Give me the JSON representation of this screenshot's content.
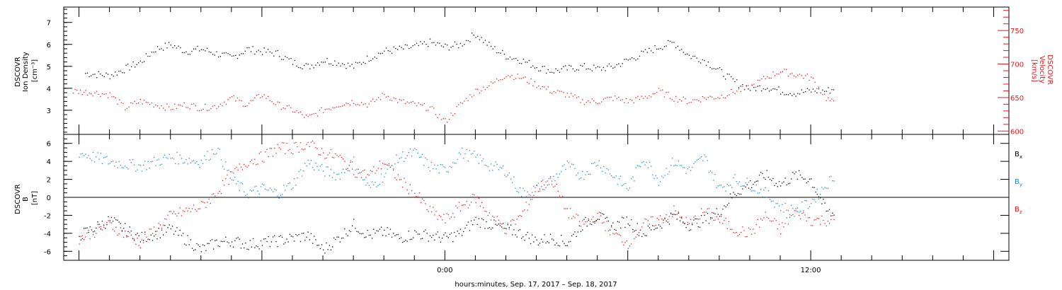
{
  "x_axis_title": "hours:minutes, Sep. 17, 2017 – Sep. 18, 2017",
  "colors": {
    "black": "#000000",
    "red": "#e8191c",
    "blue": "#1e86d8"
  },
  "chart_data": [
    {
      "type": "scatter",
      "panel": "top",
      "left_axis_label": [
        "DSCOVR",
        "Ion Density",
        "[cm⁻³]"
      ],
      "right_axis_label": [
        "DSCOVR",
        "Velocity",
        "[km/s]"
      ],
      "x_ticks": [
        "0:00",
        "12:00"
      ],
      "x_range_hours": [
        -12.5,
        18.5
      ],
      "y_left_ticks": [
        "3",
        "4",
        "5",
        "6",
        "7"
      ],
      "y_left_range": [
        1.9,
        7.7
      ],
      "y_right_ticks": [
        "600",
        "650",
        "700",
        "750"
      ],
      "y_right_range": [
        595,
        785
      ],
      "series": [
        {
          "name": "Ion Density",
          "axis": "left",
          "color": "#000000",
          "x": [
            -11.8,
            -11,
            -10,
            -9.5,
            -9,
            -8.5,
            -8,
            -7.5,
            -7,
            -6.5,
            -6,
            -5.5,
            -5,
            -4.5,
            -4,
            -3.5,
            -3,
            -2.5,
            -2,
            -1.5,
            -1,
            -0.5,
            0,
            0.5,
            1,
            1.5,
            2,
            2.5,
            3,
            3.5,
            4,
            4.5,
            5,
            5.5,
            6,
            6.5,
            7,
            7.5,
            8,
            8.5,
            9,
            9.5,
            10,
            10.5,
            11,
            11.5,
            12,
            12.5,
            12.8
          ],
          "y": [
            4.7,
            4.6,
            5.2,
            5.8,
            6.0,
            5.7,
            5.8,
            5.6,
            5.4,
            5.8,
            5.7,
            5.6,
            5.2,
            5.0,
            5.3,
            5.2,
            5.0,
            5.4,
            5.7,
            5.8,
            5.9,
            6.1,
            5.9,
            6.0,
            6.5,
            5.9,
            5.5,
            5.3,
            5.0,
            4.8,
            4.9,
            5.0,
            4.9,
            5.0,
            5.3,
            5.6,
            5.9,
            6.1,
            5.5,
            5.3,
            4.8,
            4.3,
            4.0,
            4.1,
            3.9,
            3.8,
            3.9,
            3.9,
            4.0
          ]
        },
        {
          "name": "Velocity",
          "axis": "right",
          "color": "#e8191c",
          "x": [
            -12.2,
            -11.5,
            -11,
            -10.5,
            -10,
            -9.5,
            -9,
            -8.5,
            -8,
            -7.5,
            -7,
            -6.5,
            -6,
            -5.5,
            -5,
            -4.5,
            -4,
            -3.5,
            -3,
            -2.5,
            -2,
            -1.5,
            -1,
            -0.5,
            0,
            0.5,
            1,
            1.5,
            2,
            2.5,
            3,
            3.5,
            4,
            4.5,
            5,
            5.5,
            6,
            6.5,
            7,
            7.5,
            8,
            8.5,
            9,
            9.5,
            10,
            10.5,
            11,
            11.5,
            12,
            12.5,
            12.8
          ],
          "y": [
            660,
            658,
            655,
            635,
            645,
            640,
            635,
            640,
            635,
            638,
            650,
            640,
            655,
            640,
            632,
            620,
            632,
            640,
            645,
            640,
            655,
            645,
            640,
            635,
            615,
            640,
            660,
            670,
            685,
            680,
            670,
            660,
            655,
            645,
            645,
            650,
            645,
            650,
            660,
            650,
            645,
            650,
            652,
            660,
            665,
            680,
            690,
            685,
            680,
            650,
            640
          ]
        }
      ]
    },
    {
      "type": "scatter",
      "panel": "bottom",
      "left_axis_label": [
        "DSCOVR",
        "B",
        "[nT]"
      ],
      "x_ticks": [
        "0:00",
        "12:00"
      ],
      "x_range_hours": [
        -12.5,
        18.5
      ],
      "y_left_ticks": [
        "-6",
        "-4",
        "-2",
        "0",
        "2",
        "4",
        "6"
      ],
      "y_left_range": [
        -7,
        7
      ],
      "zero_line": true,
      "legend_placement": "right",
      "series": [
        {
          "name": "Bx",
          "legend_main": "B",
          "legend_sub": "x",
          "color": "#000000",
          "x": [
            -12,
            -11,
            -10,
            -9,
            -8,
            -7.5,
            -7,
            -6.5,
            -6,
            -5.5,
            -5,
            -4.5,
            -4,
            -3.5,
            -3,
            -2.5,
            -2,
            -1.5,
            -1,
            -0.5,
            0,
            0.5,
            1,
            1.5,
            2,
            2.5,
            3,
            3.5,
            4,
            4.5,
            5,
            5.5,
            6,
            6.5,
            7,
            7.5,
            8,
            8.5,
            9,
            9.5,
            10,
            10.5,
            11,
            11.5,
            12,
            12.5,
            12.8
          ],
          "y": [
            -4.2,
            -2.5,
            -4.5,
            -3.5,
            -5.8,
            -5.0,
            -4.8,
            -5.2,
            -5.0,
            -4.8,
            -4.5,
            -4.2,
            -5.8,
            -4.5,
            -3.0,
            -4.2,
            -3.8,
            -4.5,
            -4.0,
            -4.2,
            -4.5,
            -4.0,
            -2.5,
            -3.0,
            -3.5,
            -4.0,
            -4.8,
            -4.5,
            -5.0,
            -3.0,
            -2.0,
            -3.2,
            -2.5,
            -4.0,
            -3.0,
            -2.0,
            -3.0,
            -2.5,
            -1.5,
            0.5,
            1.5,
            2.5,
            1.5,
            2.5,
            2.0,
            -1.5,
            -2.0
          ]
        },
        {
          "name": "By",
          "legend_main": "B",
          "legend_sub": "y",
          "color": "#1e86d8",
          "x": [
            -12,
            -11,
            -10,
            -9,
            -8,
            -7.5,
            -7,
            -6.5,
            -6,
            -5.5,
            -5,
            -4.5,
            -4,
            -3.5,
            -3,
            -2.5,
            -2,
            -1.5,
            -1,
            -0.5,
            0,
            0.5,
            1,
            1.5,
            2,
            2.5,
            3,
            3.5,
            4,
            4.5,
            5,
            5.5,
            6,
            6.5,
            7,
            7.5,
            8,
            8.5,
            9,
            9.5,
            10,
            10.5,
            11,
            11.5,
            12,
            12.5,
            12.8
          ],
          "y": [
            5.0,
            4.0,
            3.5,
            4.5,
            4.0,
            5.5,
            2.0,
            0.5,
            1.0,
            0.5,
            1.5,
            4.0,
            3.0,
            2.5,
            4.0,
            1.0,
            2.5,
            4.5,
            5.0,
            3.5,
            3.0,
            5.0,
            4.5,
            3.5,
            3.0,
            0.5,
            1.0,
            2.0,
            3.5,
            2.5,
            4.0,
            2.5,
            1.0,
            4.5,
            2.0,
            4.0,
            3.0,
            4.5,
            1.0,
            2.0,
            1.5,
            0.5,
            -1.0,
            -1.5,
            -0.5,
            1.5,
            2.5
          ]
        },
        {
          "name": "Bz",
          "legend_main": "B",
          "legend_sub": "z",
          "color": "#e8191c",
          "x": [
            -12,
            -11,
            -10,
            -9,
            -8,
            -7.5,
            -7,
            -6.5,
            -6,
            -5.5,
            -5,
            -4.5,
            -4,
            -3.5,
            -3,
            -2.5,
            -2,
            -1.5,
            -1,
            -0.5,
            0,
            0.5,
            1,
            1.5,
            2,
            2.5,
            3,
            3.5,
            4,
            4.5,
            5,
            5.5,
            6,
            6.5,
            7,
            7.5,
            8,
            8.5,
            9,
            9.5,
            10,
            10.5,
            11,
            11.5,
            12,
            12.5,
            12.8
          ],
          "y": [
            -4.5,
            -3.0,
            -5.0,
            -2.0,
            -1.0,
            0.5,
            2.5,
            4.0,
            4.5,
            5.5,
            5.5,
            6.0,
            5.0,
            4.5,
            3.0,
            2.5,
            4.0,
            2.0,
            0.5,
            -1.5,
            -2.5,
            -1.0,
            0.0,
            -2.0,
            -3.5,
            -2.0,
            1.0,
            2.0,
            -1.5,
            -3.0,
            -2.0,
            -4.0,
            -5.0,
            -3.0,
            -2.5,
            -1.5,
            -3.0,
            -1.5,
            -2.5,
            -3.5,
            -4.0,
            -2.0,
            -3.5,
            -1.5,
            -2.5,
            -2.5,
            -2.5
          ]
        }
      ]
    }
  ]
}
